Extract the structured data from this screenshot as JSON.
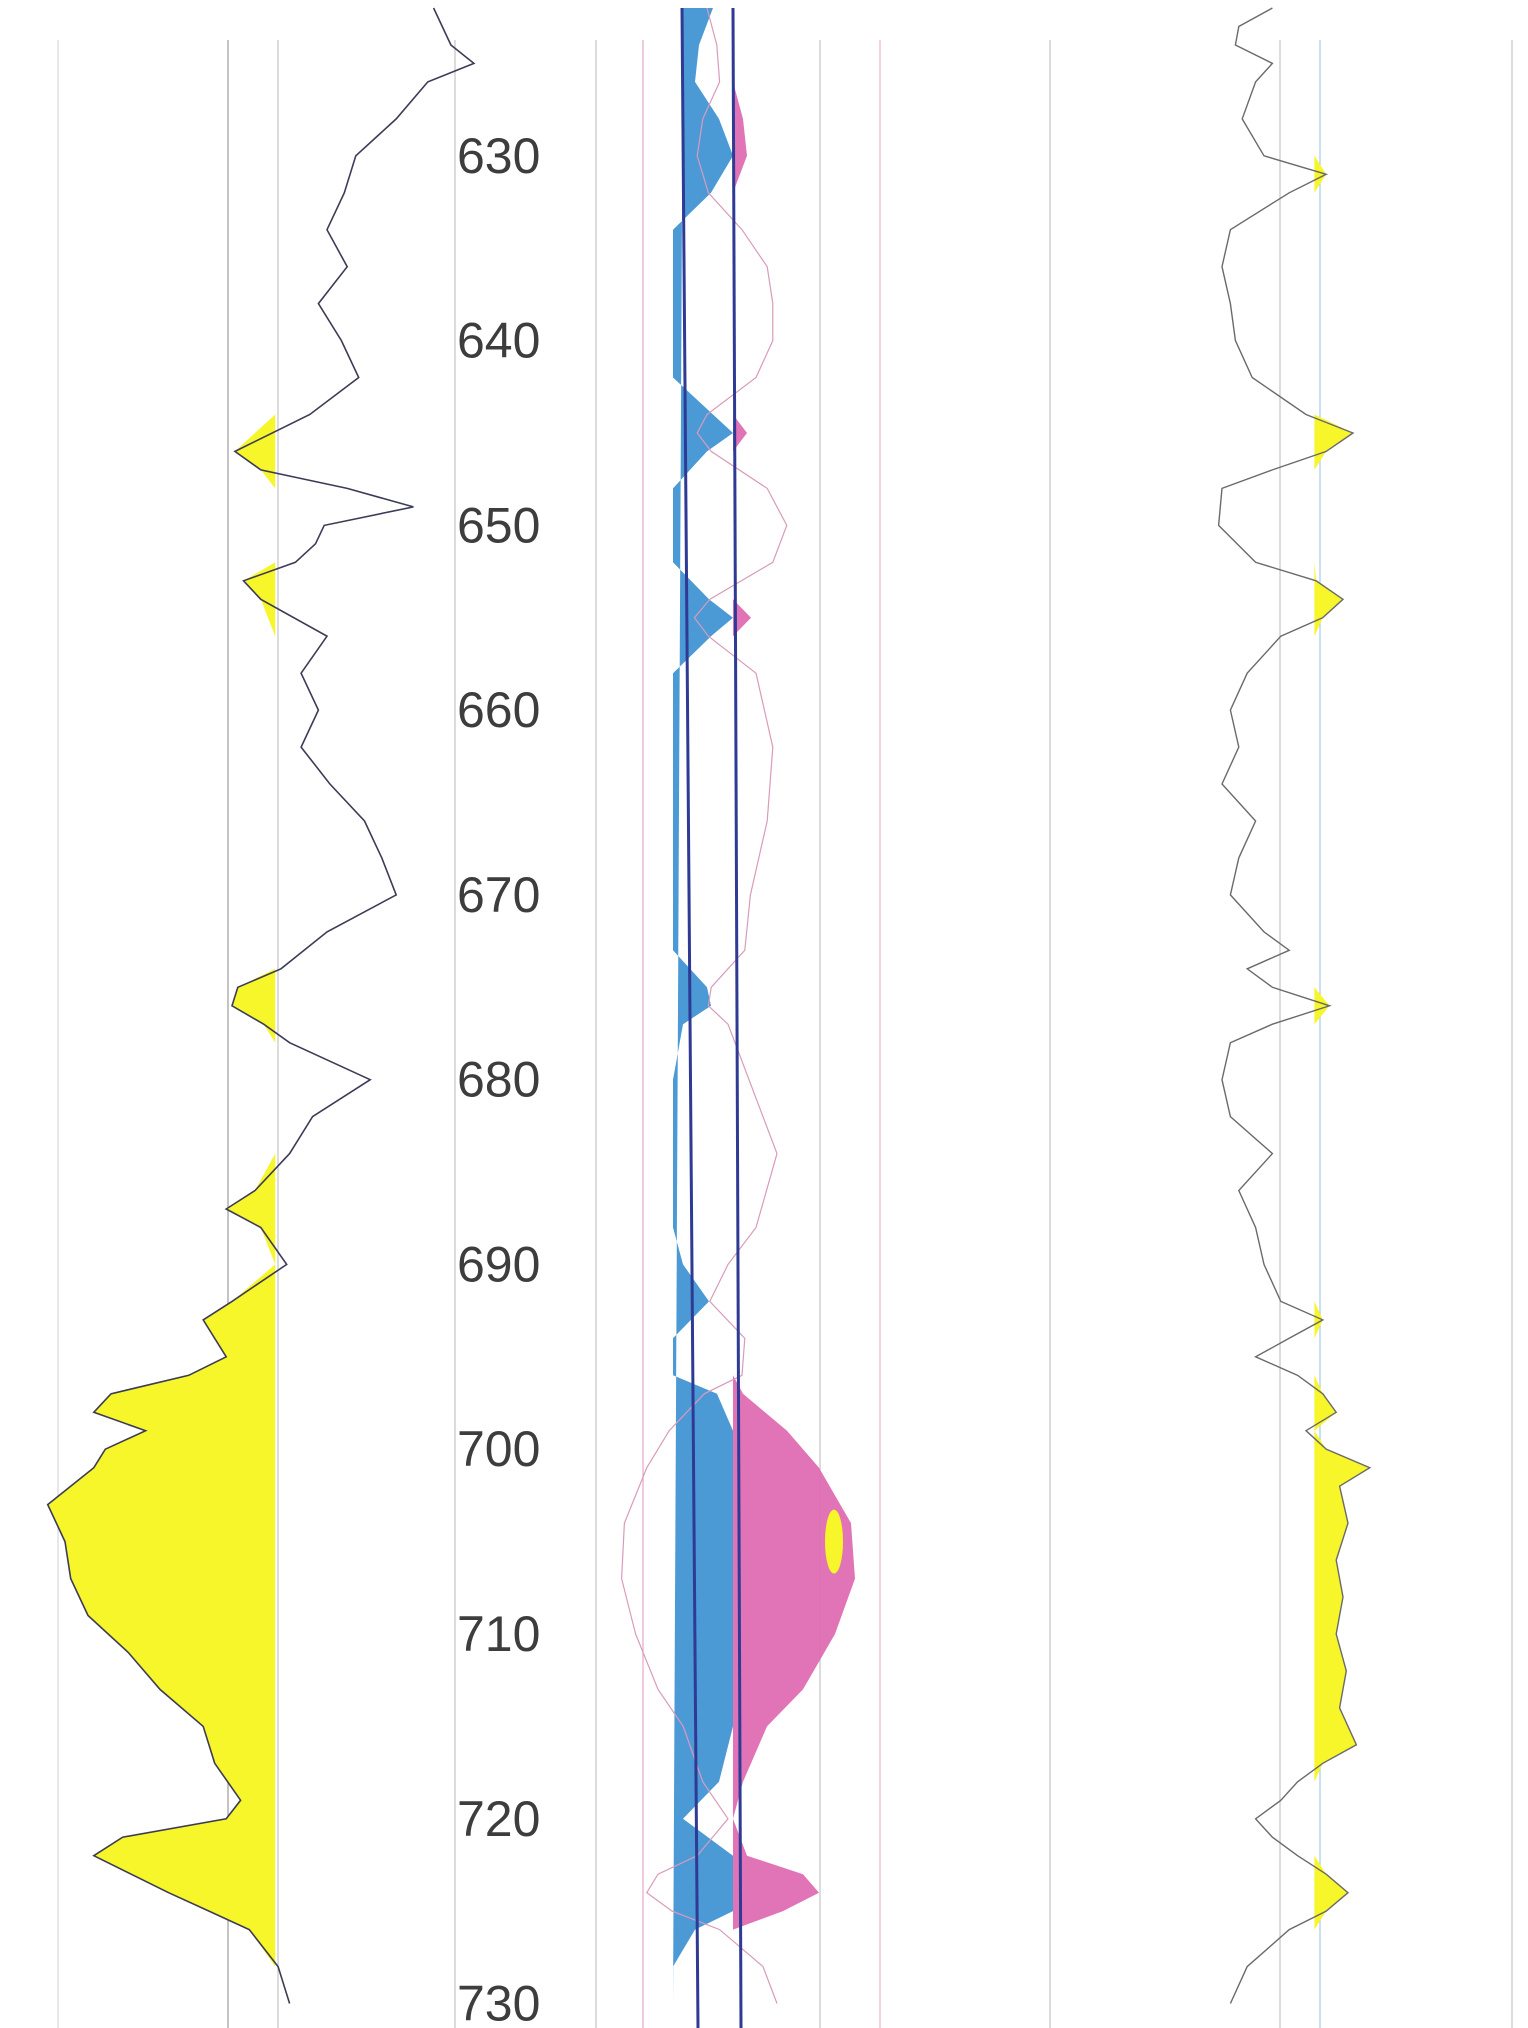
{
  "chart_data": {
    "type": "line",
    "title": "",
    "depth_axis": {
      "range": [
        622,
        731
      ],
      "ticks": [
        "630",
        "640",
        "650",
        "660",
        "670",
        "680",
        "690",
        "700",
        "710",
        "720",
        "730"
      ],
      "tick_values": [
        630,
        640,
        650,
        660,
        670,
        680,
        690,
        700,
        710,
        720,
        730
      ]
    },
    "tracks": [
      {
        "name": "",
        "cutoff": 0.15,
        "fill_color": "#f6f62a",
        "fill_side": "left",
        "curve_points": [
          [
            622,
            0.7
          ],
          [
            624,
            0.76
          ],
          [
            625,
            0.84
          ],
          [
            626,
            0.68
          ],
          [
            628,
            0.57
          ],
          [
            630,
            0.43
          ],
          [
            632,
            0.39
          ],
          [
            634,
            0.33
          ],
          [
            636,
            0.4
          ],
          [
            638,
            0.3
          ],
          [
            640,
            0.38
          ],
          [
            642,
            0.44
          ],
          [
            644,
            0.27
          ],
          [
            646,
            0.01
          ],
          [
            647,
            0.1
          ],
          [
            648,
            0.4
          ],
          [
            649,
            0.63
          ],
          [
            650,
            0.32
          ],
          [
            651,
            0.29
          ],
          [
            652,
            0.22
          ],
          [
            653,
            0.04
          ],
          [
            654,
            0.1
          ],
          [
            656,
            0.33
          ],
          [
            658,
            0.24
          ],
          [
            660,
            0.3
          ],
          [
            662,
            0.24
          ],
          [
            664,
            0.34
          ],
          [
            666,
            0.46
          ],
          [
            668,
            0.52
          ],
          [
            670,
            0.57
          ],
          [
            672,
            0.33
          ],
          [
            674,
            0.17
          ],
          [
            675,
            0.02
          ],
          [
            676,
            0.0
          ],
          [
            677,
            0.11
          ],
          [
            678,
            0.2
          ],
          [
            680,
            0.48
          ],
          [
            682,
            0.28
          ],
          [
            684,
            0.2
          ],
          [
            686,
            0.08
          ],
          [
            687,
            -0.02
          ],
          [
            688,
            0.1
          ],
          [
            690,
            0.19
          ],
          [
            692,
            0.0
          ],
          [
            693,
            -0.1
          ],
          [
            695,
            -0.02
          ],
          [
            696,
            -0.15
          ],
          [
            697,
            -0.42
          ],
          [
            698,
            -0.48
          ],
          [
            699,
            -0.3
          ],
          [
            700,
            -0.44
          ],
          [
            701,
            -0.48
          ],
          [
            703,
            -0.64
          ],
          [
            705,
            -0.58
          ],
          [
            707,
            -0.56
          ],
          [
            709,
            -0.5
          ],
          [
            711,
            -0.36
          ],
          [
            713,
            -0.25
          ],
          [
            715,
            -0.1
          ],
          [
            717,
            -0.06
          ],
          [
            719,
            0.03
          ],
          [
            720,
            -0.02
          ],
          [
            721,
            -0.38
          ],
          [
            722,
            -0.48
          ],
          [
            724,
            -0.22
          ],
          [
            725,
            -0.08
          ],
          [
            726,
            0.06
          ],
          [
            728,
            0.16
          ],
          [
            730,
            0.2
          ]
        ]
      },
      {
        "name": "",
        "baseline": 0,
        "left_fill_color": "#4b9ad6",
        "right_fill_color": "#dd68b0",
        "curve_points": [
          [
            622,
            0.05
          ],
          [
            624,
            0.12
          ],
          [
            626,
            0.14
          ],
          [
            628,
            0.02
          ],
          [
            630,
            -0.02
          ],
          [
            632,
            0.06
          ],
          [
            634,
            0.3
          ],
          [
            636,
            0.48
          ],
          [
            638,
            0.52
          ],
          [
            640,
            0.52
          ],
          [
            642,
            0.4
          ],
          [
            644,
            0.05
          ],
          [
            645,
            -0.02
          ],
          [
            646,
            0.08
          ],
          [
            648,
            0.48
          ],
          [
            650,
            0.62
          ],
          [
            652,
            0.52
          ],
          [
            654,
            0.07
          ],
          [
            655,
            -0.04
          ],
          [
            656,
            0.06
          ],
          [
            658,
            0.4
          ],
          [
            662,
            0.52
          ],
          [
            666,
            0.48
          ],
          [
            670,
            0.36
          ],
          [
            673,
            0.32
          ],
          [
            675,
            0.08
          ],
          [
            676,
            0.06
          ],
          [
            677,
            0.2
          ],
          [
            680,
            0.35
          ],
          [
            684,
            0.55
          ],
          [
            688,
            0.4
          ],
          [
            690,
            0.2
          ],
          [
            692,
            0.07
          ],
          [
            694,
            0.32
          ],
          [
            696,
            0.3
          ],
          [
            697,
            0.03
          ],
          [
            699,
            -0.22
          ],
          [
            701,
            -0.38
          ],
          [
            704,
            -0.54
          ],
          [
            707,
            -0.56
          ],
          [
            710,
            -0.46
          ],
          [
            713,
            -0.3
          ],
          [
            715,
            -0.12
          ],
          [
            718,
            0.02
          ],
          [
            720,
            0.2
          ],
          [
            722,
            -0.02
          ],
          [
            723,
            -0.3
          ],
          [
            724,
            -0.38
          ],
          [
            725,
            -0.2
          ],
          [
            726,
            0.14
          ],
          [
            728,
            0.45
          ],
          [
            730,
            0.55
          ]
        ],
        "marker": {
          "depth": 705,
          "color": "#f6f62a"
        }
      },
      {
        "name": "",
        "cutoff": 0.55,
        "fill_color": "#f6f62a",
        "fill_side": "right",
        "curve_points": [
          [
            622,
            0.3
          ],
          [
            623,
            0.1
          ],
          [
            624,
            0.08
          ],
          [
            625,
            0.3
          ],
          [
            626,
            0.2
          ],
          [
            628,
            0.12
          ],
          [
            630,
            0.25
          ],
          [
            631,
            0.62
          ],
          [
            632,
            0.4
          ],
          [
            634,
            0.05
          ],
          [
            636,
            0.0
          ],
          [
            638,
            0.05
          ],
          [
            640,
            0.08
          ],
          [
            642,
            0.18
          ],
          [
            644,
            0.5
          ],
          [
            645,
            0.78
          ],
          [
            646,
            0.62
          ],
          [
            647,
            0.3
          ],
          [
            648,
            0.0
          ],
          [
            650,
            -0.02
          ],
          [
            652,
            0.2
          ],
          [
            653,
            0.56
          ],
          [
            654,
            0.72
          ],
          [
            655,
            0.6
          ],
          [
            656,
            0.35
          ],
          [
            658,
            0.15
          ],
          [
            660,
            0.05
          ],
          [
            662,
            0.1
          ],
          [
            664,
            0.0
          ],
          [
            666,
            0.2
          ],
          [
            668,
            0.1
          ],
          [
            670,
            0.05
          ],
          [
            672,
            0.25
          ],
          [
            673,
            0.4
          ],
          [
            674,
            0.15
          ],
          [
            675,
            0.3
          ],
          [
            676,
            0.64
          ],
          [
            677,
            0.3
          ],
          [
            678,
            0.05
          ],
          [
            680,
            0.0
          ],
          [
            682,
            0.05
          ],
          [
            684,
            0.3
          ],
          [
            686,
            0.1
          ],
          [
            688,
            0.2
          ],
          [
            690,
            0.25
          ],
          [
            692,
            0.35
          ],
          [
            693,
            0.6
          ],
          [
            694,
            0.4
          ],
          [
            695,
            0.2
          ],
          [
            696,
            0.45
          ],
          [
            697,
            0.6
          ],
          [
            698,
            0.68
          ],
          [
            699,
            0.5
          ],
          [
            700,
            0.62
          ],
          [
            701,
            0.88
          ],
          [
            702,
            0.7
          ],
          [
            704,
            0.75
          ],
          [
            706,
            0.68
          ],
          [
            708,
            0.72
          ],
          [
            710,
            0.68
          ],
          [
            712,
            0.74
          ],
          [
            714,
            0.7
          ],
          [
            716,
            0.8
          ],
          [
            717,
            0.6
          ],
          [
            718,
            0.45
          ],
          [
            719,
            0.35
          ],
          [
            720,
            0.2
          ],
          [
            721,
            0.3
          ],
          [
            722,
            0.45
          ],
          [
            723,
            0.62
          ],
          [
            724,
            0.75
          ],
          [
            725,
            0.62
          ],
          [
            726,
            0.4
          ],
          [
            728,
            0.15
          ],
          [
            730,
            0.05
          ]
        ]
      }
    ]
  }
}
